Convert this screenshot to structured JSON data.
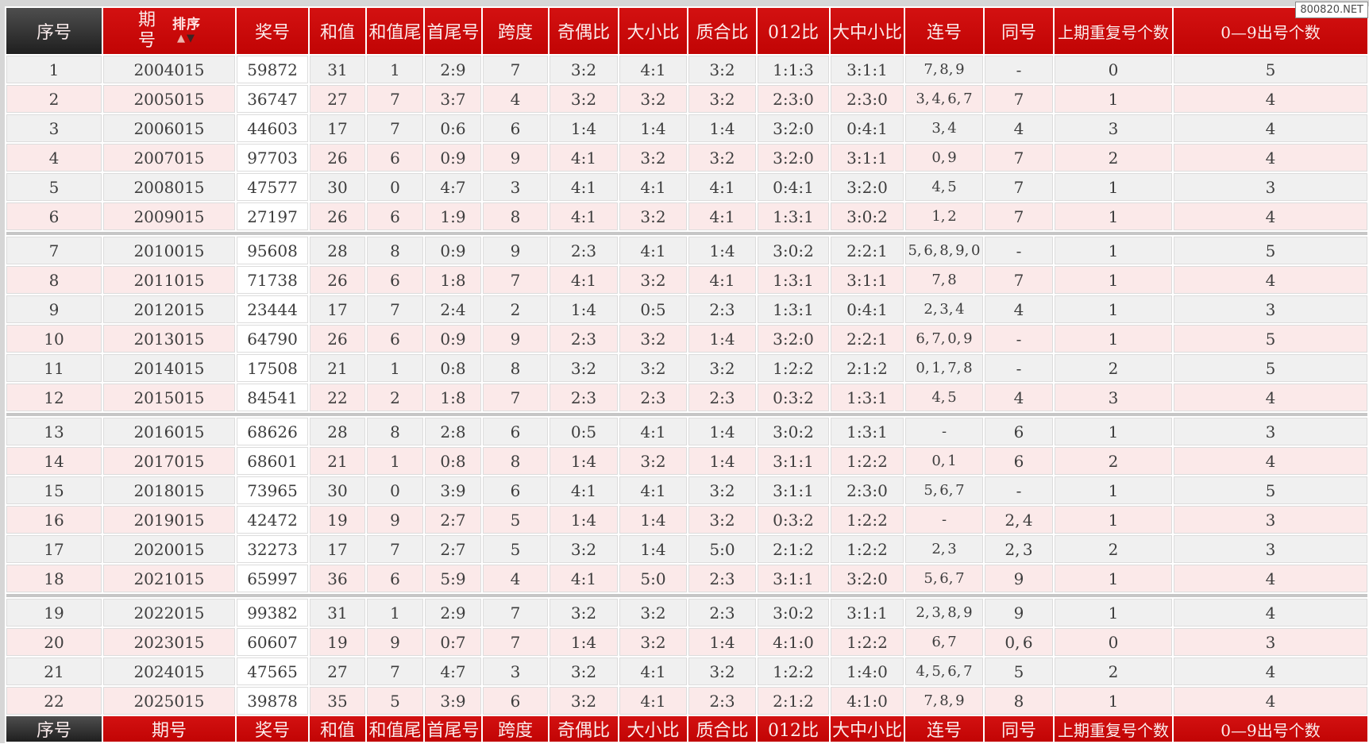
{
  "watermark": "800820.NET",
  "sort_label": "排序",
  "colors": {
    "header_red": "#c10404",
    "header_dark": "#1f1f1f",
    "row_gray": "#f0f0f0",
    "row_pink": "#fbe9e9",
    "prize_cell_white": "#ffffff",
    "separator_gray": "#c6c6c6"
  },
  "columns": [
    {
      "key": "serial",
      "label": "序号",
      "sortable": false
    },
    {
      "key": "period",
      "label": "期号",
      "sortable": true
    },
    {
      "key": "prize-number",
      "label": "奖号",
      "sortable": false
    },
    {
      "key": "sum",
      "label": "和值",
      "sortable": false
    },
    {
      "key": "sum-tail",
      "label": "和值尾",
      "sortable": false
    },
    {
      "key": "head-tail",
      "label": "首尾号",
      "sortable": false
    },
    {
      "key": "span",
      "label": "跨度",
      "sortable": false
    },
    {
      "key": "odd-even-ratio",
      "label": "奇偶比",
      "sortable": false
    },
    {
      "key": "big-small-ratio",
      "label": "大小比",
      "sortable": false
    },
    {
      "key": "prime-composite-ratio",
      "label": "质合比",
      "sortable": false
    },
    {
      "key": "zero-one-two-ratio",
      "label": "012比",
      "sortable": false
    },
    {
      "key": "big-mid-small-ratio",
      "label": "大中小比",
      "sortable": false
    },
    {
      "key": "consecutive-numbers",
      "label": "连号",
      "sortable": false
    },
    {
      "key": "same-numbers",
      "label": "同号",
      "sortable": false
    },
    {
      "key": "prev-repeat-count",
      "label": "上期重复号个数",
      "sortable": false
    },
    {
      "key": "digit-occurrence-count",
      "label": "0—9出号个数",
      "sortable": false
    }
  ],
  "group_size": 6,
  "rows": [
    [
      "1",
      "2004015",
      "59872",
      "31",
      "1",
      "2:9",
      "7",
      "3:2",
      "4:1",
      "3:2",
      "1:1:3",
      "3:1:1",
      "7, 8, 9",
      "-",
      "0",
      "5"
    ],
    [
      "2",
      "2005015",
      "36747",
      "27",
      "7",
      "3:7",
      "4",
      "3:2",
      "3:2",
      "3:2",
      "2:3:0",
      "2:3:0",
      "3, 4, 6, 7",
      "7",
      "1",
      "4"
    ],
    [
      "3",
      "2006015",
      "44603",
      "17",
      "7",
      "0:6",
      "6",
      "1:4",
      "1:4",
      "1:4",
      "3:2:0",
      "0:4:1",
      "3, 4",
      "4",
      "3",
      "4"
    ],
    [
      "4",
      "2007015",
      "97703",
      "26",
      "6",
      "0:9",
      "9",
      "4:1",
      "3:2",
      "3:2",
      "3:2:0",
      "3:1:1",
      "0, 9",
      "7",
      "2",
      "4"
    ],
    [
      "5",
      "2008015",
      "47577",
      "30",
      "0",
      "4:7",
      "3",
      "4:1",
      "4:1",
      "4:1",
      "0:4:1",
      "3:2:0",
      "4, 5",
      "7",
      "1",
      "3"
    ],
    [
      "6",
      "2009015",
      "27197",
      "26",
      "6",
      "1:9",
      "8",
      "4:1",
      "3:2",
      "4:1",
      "1:3:1",
      "3:0:2",
      "1, 2",
      "7",
      "1",
      "4"
    ],
    [
      "7",
      "2010015",
      "95608",
      "28",
      "8",
      "0:9",
      "9",
      "2:3",
      "4:1",
      "1:4",
      "3:0:2",
      "2:2:1",
      "5, 6, 8, 9, 0",
      "-",
      "1",
      "5"
    ],
    [
      "8",
      "2011015",
      "71738",
      "26",
      "6",
      "1:8",
      "7",
      "4:1",
      "3:2",
      "4:1",
      "1:3:1",
      "3:1:1",
      "7, 8",
      "7",
      "1",
      "4"
    ],
    [
      "9",
      "2012015",
      "23444",
      "17",
      "7",
      "2:4",
      "2",
      "1:4",
      "0:5",
      "2:3",
      "1:3:1",
      "0:4:1",
      "2, 3, 4",
      "4",
      "1",
      "3"
    ],
    [
      "10",
      "2013015",
      "64790",
      "26",
      "6",
      "0:9",
      "9",
      "2:3",
      "3:2",
      "1:4",
      "3:2:0",
      "2:2:1",
      "6, 7, 0, 9",
      "-",
      "1",
      "5"
    ],
    [
      "11",
      "2014015",
      "17508",
      "21",
      "1",
      "0:8",
      "8",
      "3:2",
      "3:2",
      "3:2",
      "1:2:2",
      "2:1:2",
      "0, 1, 7, 8",
      "-",
      "2",
      "5"
    ],
    [
      "12",
      "2015015",
      "84541",
      "22",
      "2",
      "1:8",
      "7",
      "2:3",
      "2:3",
      "2:3",
      "0:3:2",
      "1:3:1",
      "4, 5",
      "4",
      "3",
      "4"
    ],
    [
      "13",
      "2016015",
      "68626",
      "28",
      "8",
      "2:8",
      "6",
      "0:5",
      "4:1",
      "1:4",
      "3:0:2",
      "1:3:1",
      "-",
      "6",
      "1",
      "3"
    ],
    [
      "14",
      "2017015",
      "68601",
      "21",
      "1",
      "0:8",
      "8",
      "1:4",
      "3:2",
      "1:4",
      "3:1:1",
      "1:2:2",
      "0, 1",
      "6",
      "2",
      "4"
    ],
    [
      "15",
      "2018015",
      "73965",
      "30",
      "0",
      "3:9",
      "6",
      "4:1",
      "4:1",
      "3:2",
      "3:1:1",
      "2:3:0",
      "5, 6, 7",
      "-",
      "1",
      "5"
    ],
    [
      "16",
      "2019015",
      "42472",
      "19",
      "9",
      "2:7",
      "5",
      "1:4",
      "1:4",
      "3:2",
      "0:3:2",
      "1:2:2",
      "-",
      "2, 4",
      "1",
      "3"
    ],
    [
      "17",
      "2020015",
      "32273",
      "17",
      "7",
      "2:7",
      "5",
      "3:2",
      "1:4",
      "5:0",
      "2:1:2",
      "1:2:2",
      "2, 3",
      "2, 3",
      "2",
      "3"
    ],
    [
      "18",
      "2021015",
      "65997",
      "36",
      "6",
      "5:9",
      "4",
      "4:1",
      "5:0",
      "2:3",
      "3:1:1",
      "3:2:0",
      "5, 6, 7",
      "9",
      "1",
      "4"
    ],
    [
      "19",
      "2022015",
      "99382",
      "31",
      "1",
      "2:9",
      "7",
      "3:2",
      "3:2",
      "2:3",
      "3:0:2",
      "3:1:1",
      "2, 3, 8, 9",
      "9",
      "1",
      "4"
    ],
    [
      "20",
      "2023015",
      "60607",
      "19",
      "9",
      "0:7",
      "7",
      "1:4",
      "3:2",
      "1:4",
      "4:1:0",
      "1:2:2",
      "6, 7",
      "0, 6",
      "0",
      "3"
    ],
    [
      "21",
      "2024015",
      "47565",
      "27",
      "7",
      "4:7",
      "3",
      "3:2",
      "4:1",
      "3:2",
      "1:2:2",
      "1:4:0",
      "4, 5, 6, 7",
      "5",
      "2",
      "4"
    ],
    [
      "22",
      "2025015",
      "39878",
      "35",
      "5",
      "3:9",
      "6",
      "3:2",
      "4:1",
      "2:3",
      "2:1:2",
      "4:1:0",
      "7, 8, 9",
      "8",
      "1",
      "4"
    ]
  ]
}
